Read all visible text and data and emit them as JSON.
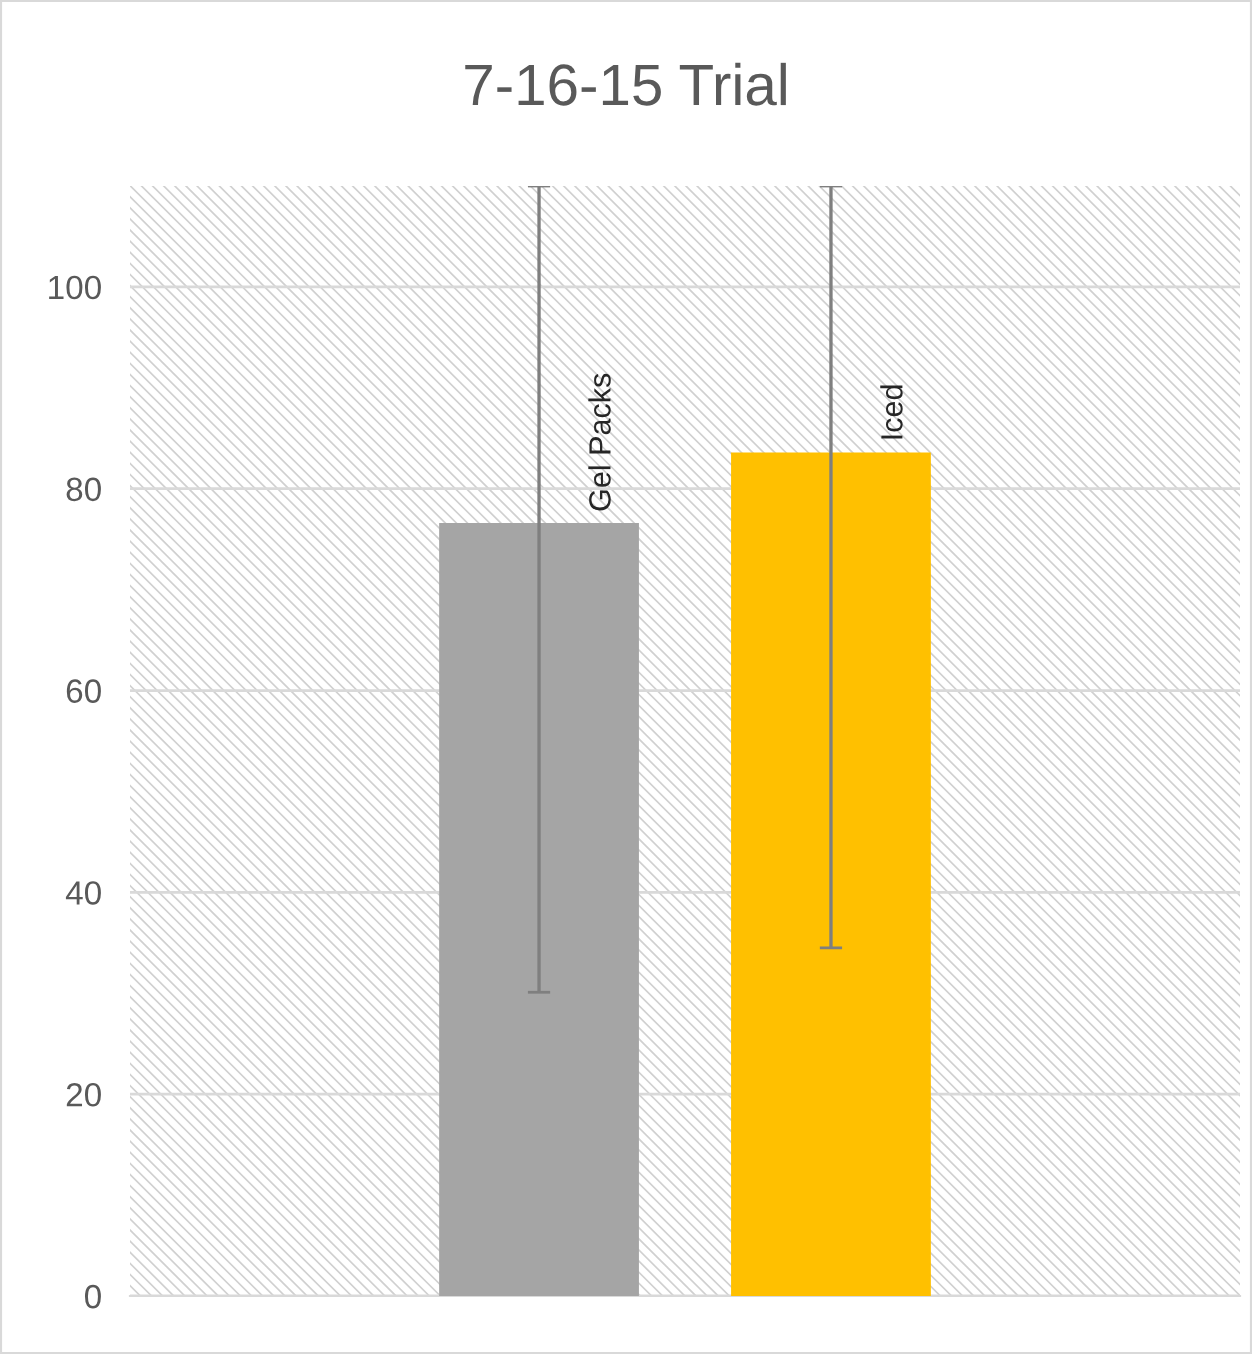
{
  "chart_data": {
    "type": "bar",
    "title": "7-16-15 Trial",
    "categories": [
      null
    ],
    "series": [
      {
        "name": "Gel Packs",
        "color": "#a5a5a5",
        "values": [
          76.6
        ],
        "errors": [
          [
            30.1,
            110
          ]
        ]
      },
      {
        "name": "Iced",
        "color": "#ffc000",
        "values": [
          83.6
        ],
        "errors": [
          [
            34.5,
            110
          ]
        ]
      }
    ],
    "ylim": [
      0,
      110
    ],
    "yticks": [
      0,
      20,
      40,
      60,
      80,
      100
    ],
    "grid": "y"
  }
}
